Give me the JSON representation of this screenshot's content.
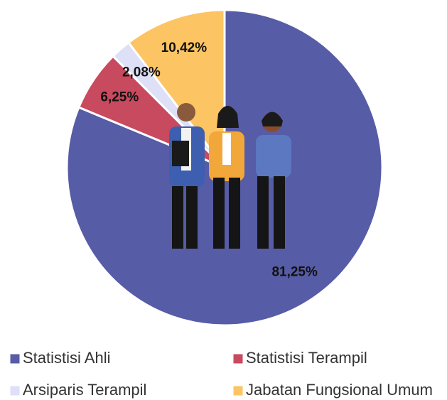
{
  "chart_data": {
    "type": "pie",
    "categories": [
      "Statistisi Ahli",
      "Statistisi Terampil",
      "Arsiparis Terampil",
      "Jabatan Fungsional Umum"
    ],
    "values": [
      81.25,
      6.25,
      2.08,
      10.42
    ],
    "value_labels": [
      "81,25%",
      "6,25%",
      "2,08%",
      "10,42%"
    ],
    "colors": [
      "#575ca6",
      "#c84a5e",
      "#dde0f7",
      "#fcc463"
    ],
    "legend": "bottom"
  }
}
